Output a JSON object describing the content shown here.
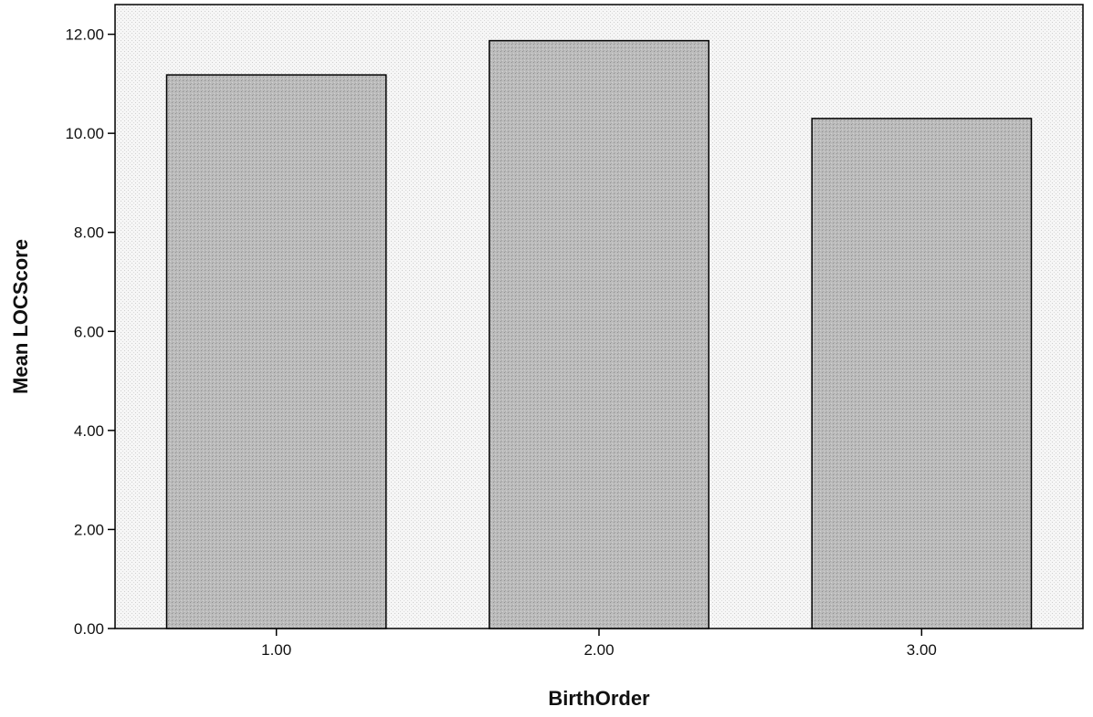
{
  "chart_data": {
    "type": "bar",
    "categories": [
      "1.00",
      "2.00",
      "3.00"
    ],
    "values": [
      11.18,
      11.87,
      10.3
    ],
    "xlabel": "BirthOrder",
    "ylabel": "Mean LOCScore",
    "ylim": [
      0,
      12.6
    ],
    "yticks": [
      "0.00",
      "2.00",
      "4.00",
      "6.00",
      "8.00",
      "10.00",
      "12.00"
    ],
    "grid": false,
    "legend": "none",
    "colors": {
      "bar_fill": "#bdbdbd",
      "plot_background": "#f4f4f4",
      "outline": "#000000"
    }
  }
}
